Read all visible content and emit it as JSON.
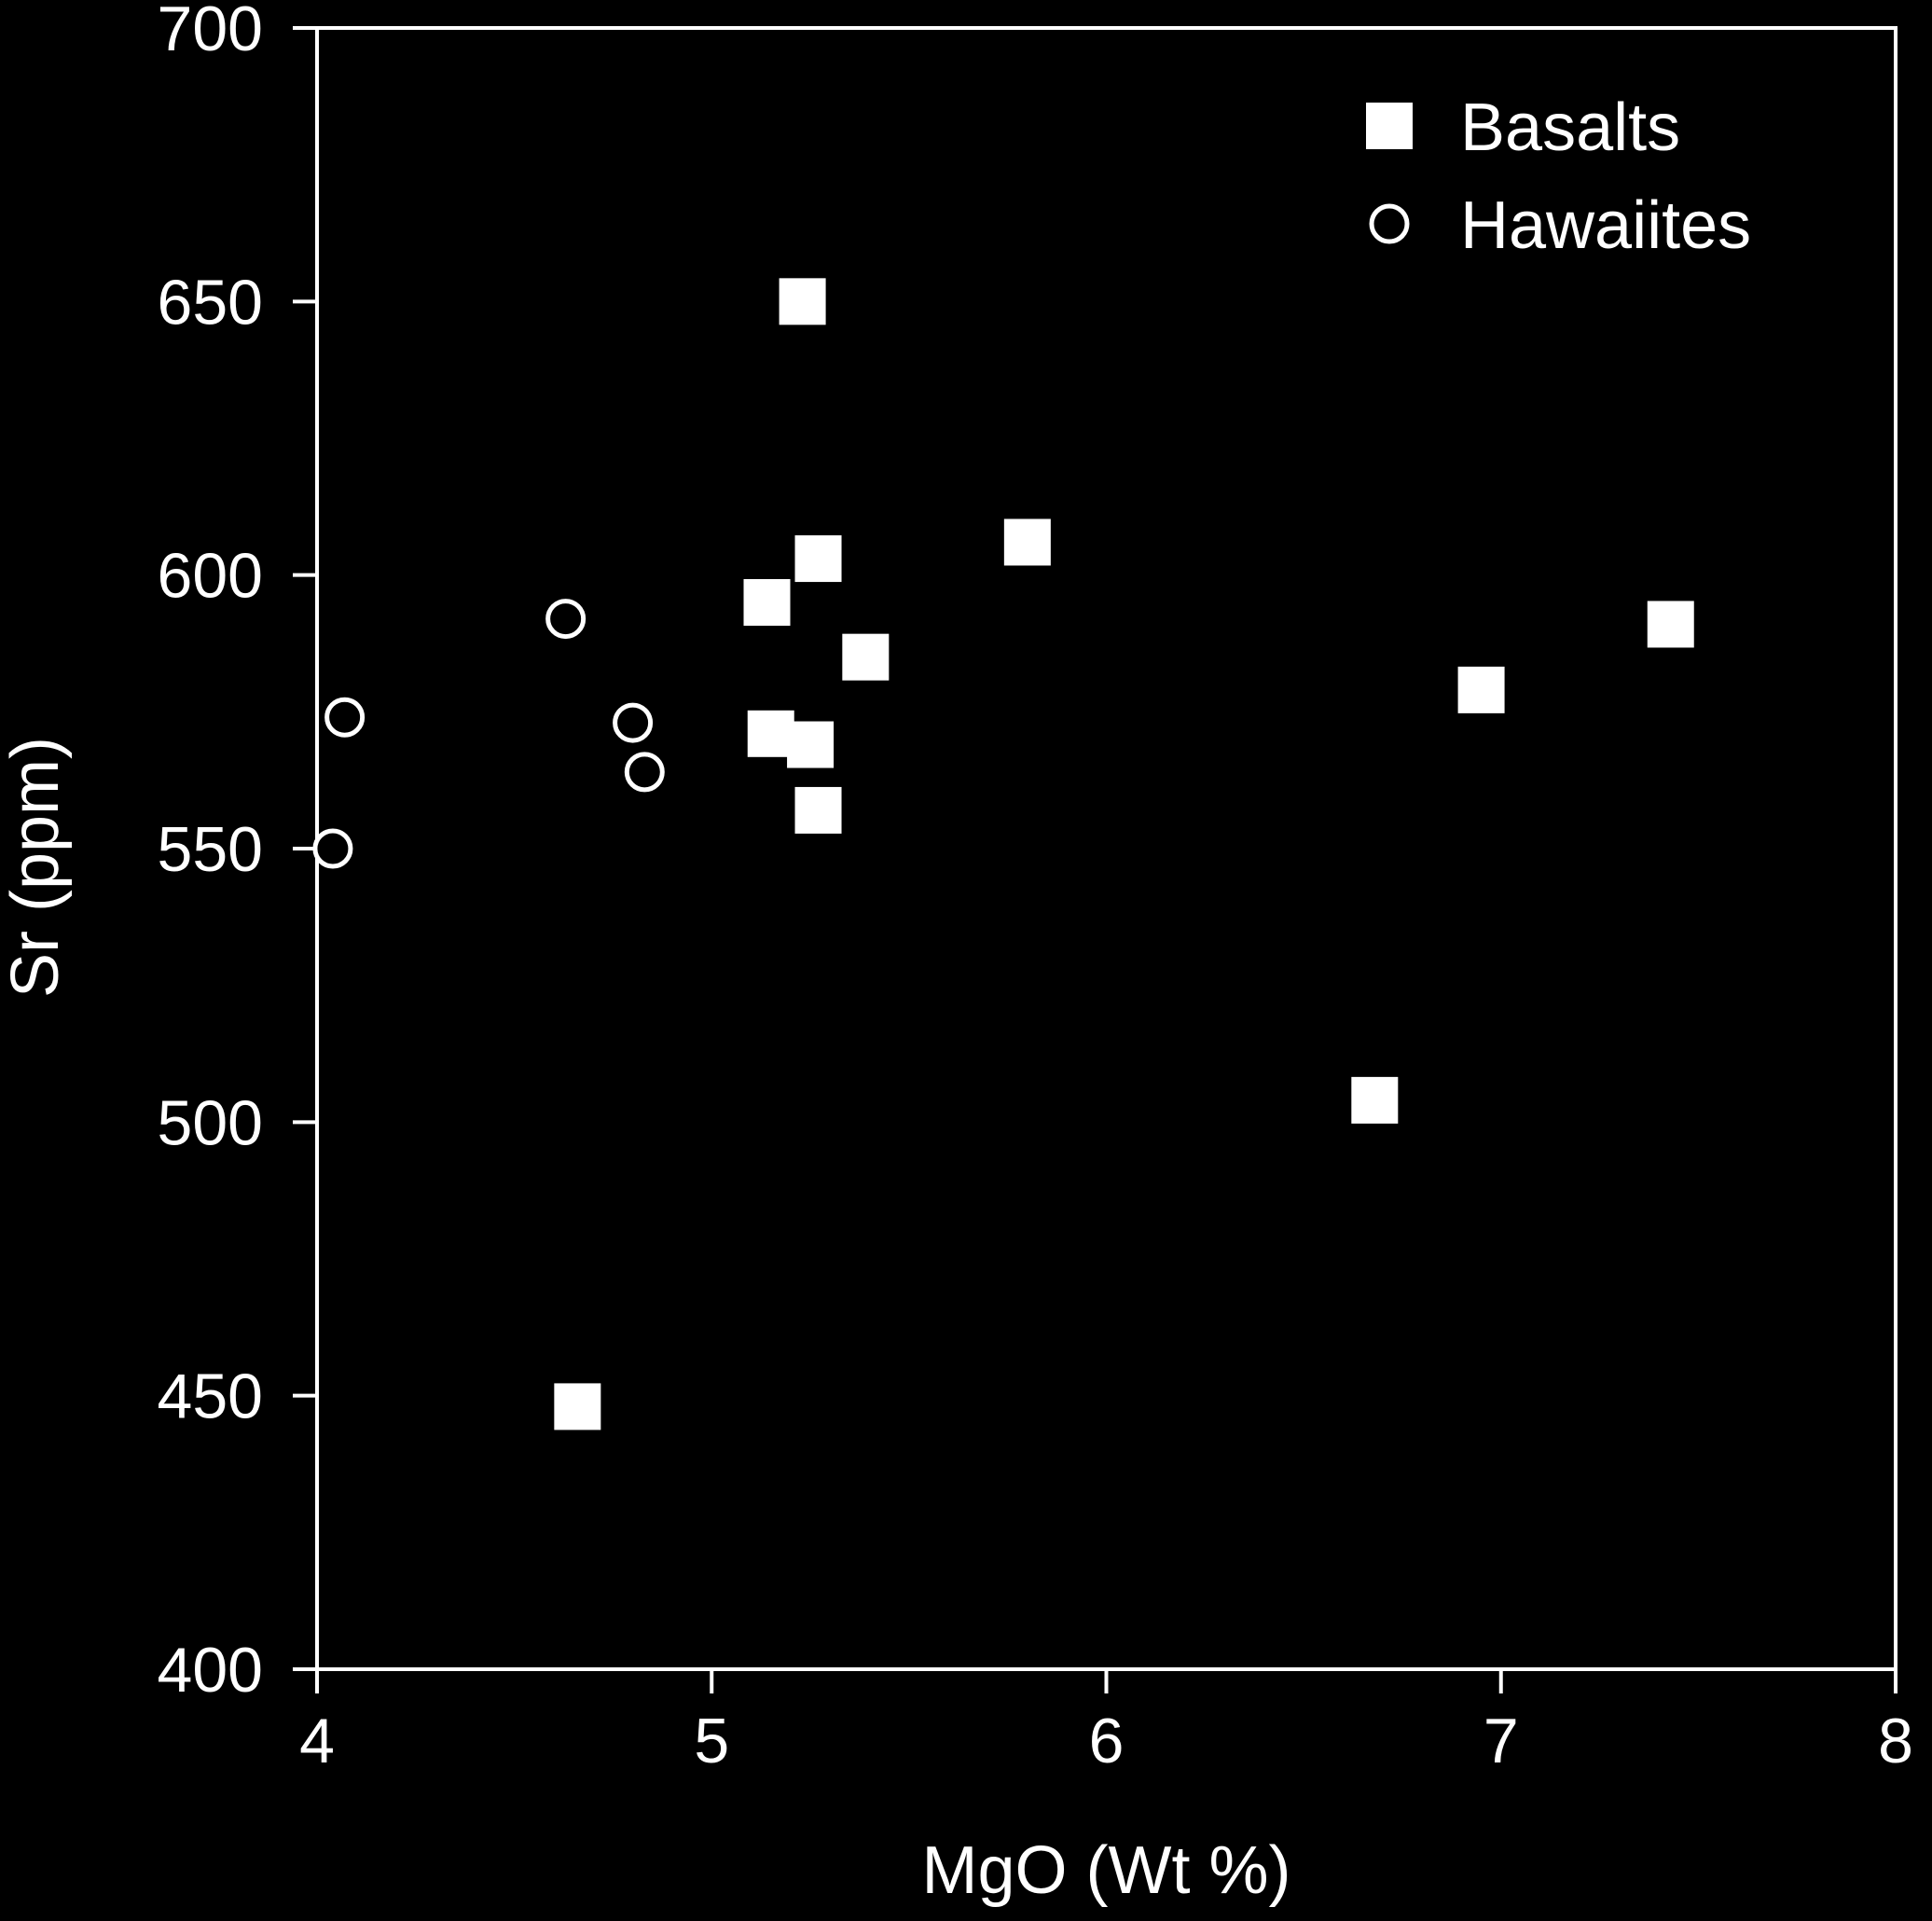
{
  "chart_data": {
    "type": "scatter",
    "title": "",
    "xlabel": "MgO (Wt %)",
    "ylabel": "Sr (ppm)",
    "xlim": [
      4,
      8
    ],
    "ylim": [
      400,
      700
    ],
    "xticks": [
      4,
      5,
      6,
      7,
      8
    ],
    "yticks": [
      400,
      450,
      500,
      550,
      600,
      650,
      700
    ],
    "xtick_labels": [
      "4",
      "5",
      "6",
      "7",
      "8"
    ],
    "ytick_labels": [
      "400",
      "450",
      "500",
      "550",
      "600",
      "650",
      "700"
    ],
    "grid": false,
    "legend_position": "top-right",
    "series": [
      {
        "name": "Basalts",
        "marker": "filled-square",
        "color": "#ffffff",
        "points": [
          {
            "x": 5.23,
            "y": 650
          },
          {
            "x": 5.27,
            "y": 603
          },
          {
            "x": 5.8,
            "y": 606
          },
          {
            "x": 5.14,
            "y": 595
          },
          {
            "x": 5.39,
            "y": 585
          },
          {
            "x": 5.15,
            "y": 571
          },
          {
            "x": 5.25,
            "y": 569
          },
          {
            "x": 5.27,
            "y": 557
          },
          {
            "x": 6.95,
            "y": 579
          },
          {
            "x": 7.43,
            "y": 591
          },
          {
            "x": 6.68,
            "y": 504
          },
          {
            "x": 4.66,
            "y": 448
          }
        ]
      },
      {
        "name": "Hawaiites",
        "marker": "open-circle",
        "color": "#ffffff",
        "points": [
          {
            "x": 4.63,
            "y": 592
          },
          {
            "x": 4.07,
            "y": 574
          },
          {
            "x": 4.8,
            "y": 573
          },
          {
            "x": 4.83,
            "y": 564
          },
          {
            "x": 4.04,
            "y": 550
          }
        ]
      }
    ]
  }
}
